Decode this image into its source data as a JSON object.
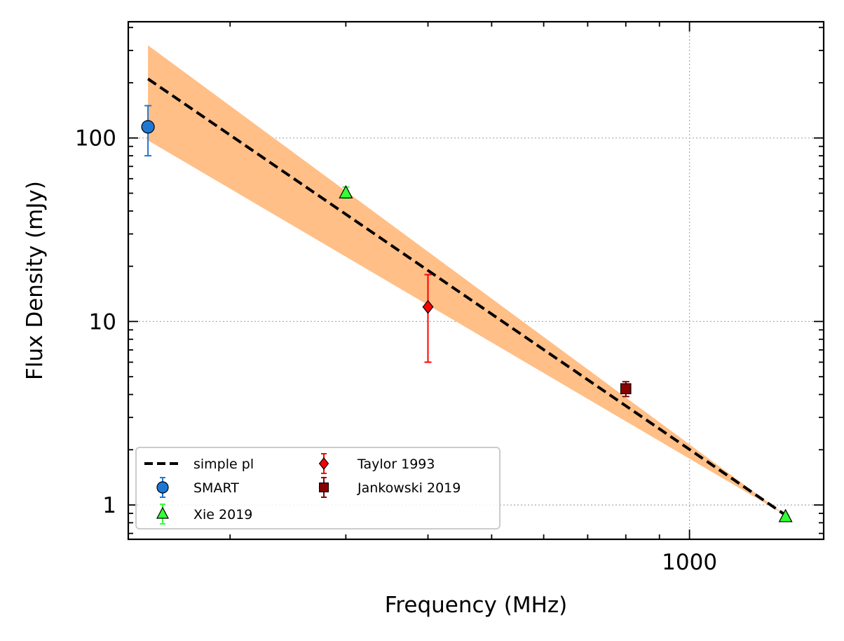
{
  "chart_data": {
    "type": "scatter",
    "x_scale": "log",
    "y_scale": "log",
    "xlim": [
      140,
      1600
    ],
    "ylim": [
      0.65,
      430
    ],
    "xlabel": "Frequency (MHz)",
    "ylabel": "Flux Density (mJy)",
    "x_ticks": [
      {
        "value": 1000,
        "label": "1000"
      }
    ],
    "y_ticks": [
      {
        "value": 1,
        "label": "1"
      },
      {
        "value": 10,
        "label": "10"
      },
      {
        "value": 100,
        "label": "100"
      }
    ],
    "grid": true,
    "legend_position": "lower-left",
    "fit": {
      "name": "simple pl",
      "x": [
        150,
        1400
      ],
      "y": [
        210,
        0.88
      ],
      "band": {
        "x": [
          150,
          1400
        ],
        "upper": [
          320,
          0.88
        ],
        "lower": [
          97,
          0.88
        ]
      },
      "line_color": "#000000",
      "band_color": "#ffbf87"
    },
    "series": [
      {
        "name": "SMART",
        "marker": "circle",
        "color": "#1f77d4",
        "points": [
          {
            "x": 150,
            "y": 115,
            "ylow": 80,
            "yhigh": 150
          }
        ]
      },
      {
        "name": "Xie 2019",
        "marker": "triangle",
        "color": "#33ff33",
        "points": [
          {
            "x": 300,
            "y": 50,
            "ylow": 47,
            "yhigh": 54
          },
          {
            "x": 1400,
            "y": 0.86,
            "ylow": 0.84,
            "yhigh": 0.88
          }
        ]
      },
      {
        "name": "Taylor 1993",
        "marker": "diamond",
        "color": "#ff0000",
        "points": [
          {
            "x": 400,
            "y": 12,
            "ylow": 6,
            "yhigh": 18
          }
        ]
      },
      {
        "name": "Jankowski 2019",
        "marker": "square",
        "color": "#8b0000",
        "points": [
          {
            "x": 800,
            "y": 4.3,
            "ylow": 3.9,
            "yhigh": 4.7
          }
        ]
      }
    ],
    "legend": [
      {
        "label": "simple pl",
        "kind": "line"
      },
      {
        "label": "SMART",
        "kind": "circle"
      },
      {
        "label": "Xie 2019",
        "kind": "triangle"
      },
      {
        "label": "Taylor 1993",
        "kind": "diamond"
      },
      {
        "label": "Jankowski 2019",
        "kind": "square"
      }
    ]
  }
}
